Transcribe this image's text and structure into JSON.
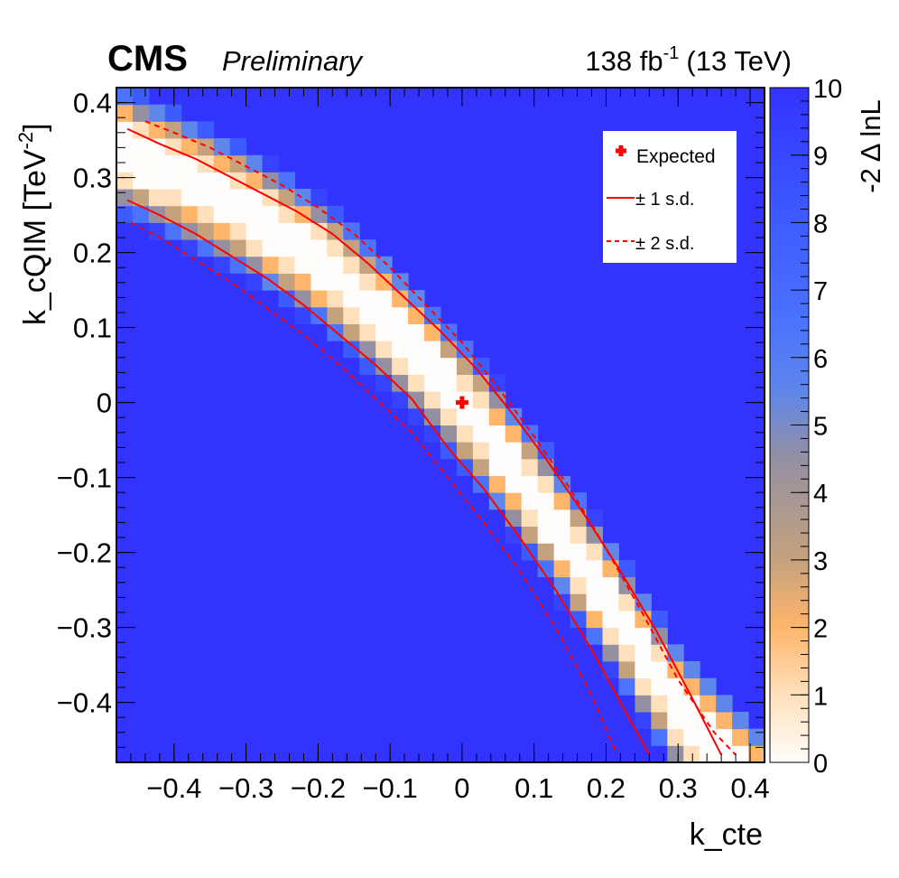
{
  "header": {
    "experiment": "CMS",
    "status": "Preliminary",
    "lumi_value": "138 fb",
    "lumi_exponent": "-1",
    "energy": "(13 TeV)"
  },
  "chart_data": {
    "type": "heatmap",
    "xlabel": "k_cte",
    "ylabel_main": "k_cQIM [TeV",
    "ylabel_exp": "-2",
    "ylabel_close": "]",
    "zlabel": "-2 Δ lnL",
    "xlim": [
      -0.48,
      0.42
    ],
    "ylim": [
      -0.48,
      0.42
    ],
    "zlim": [
      0,
      10
    ],
    "x_ticks": [
      {
        "v": -0.4,
        "t": "−0.4"
      },
      {
        "v": -0.3,
        "t": "−0.3"
      },
      {
        "v": -0.2,
        "t": "−0.2"
      },
      {
        "v": -0.1,
        "t": "−0.1"
      },
      {
        "v": 0,
        "t": "0"
      },
      {
        "v": 0.1,
        "t": "0.1"
      },
      {
        "v": 0.2,
        "t": "0.2"
      },
      {
        "v": 0.3,
        "t": "0.3"
      },
      {
        "v": 0.4,
        "t": "0.4"
      }
    ],
    "y_ticks": [
      {
        "v": -0.4,
        "t": "−0.4"
      },
      {
        "v": -0.3,
        "t": "−0.3"
      },
      {
        "v": -0.2,
        "t": "−0.2"
      },
      {
        "v": -0.1,
        "t": "−0.1"
      },
      {
        "v": 0,
        "t": "0"
      },
      {
        "v": 0.1,
        "t": "0.1"
      },
      {
        "v": 0.2,
        "t": "0.2"
      },
      {
        "v": 0.3,
        "t": "0.3"
      },
      {
        "v": 0.4,
        "t": "0.4"
      }
    ],
    "z_ticks": [
      "0",
      "1",
      "2",
      "3",
      "4",
      "5",
      "6",
      "7",
      "8",
      "9",
      "10"
    ],
    "grid": false,
    "bins": {
      "nx": 40,
      "ny": 40
    },
    "valley_curve": {
      "x": [
        -0.48,
        -0.4,
        -0.3,
        -0.2,
        -0.1,
        0,
        0.1,
        0.2,
        0.3,
        0.37
      ],
      "y": [
        0.34,
        0.305,
        0.255,
        0.19,
        0.105,
        0.0,
        -0.125,
        -0.26,
        -0.41,
        -0.48
      ]
    },
    "valley_halfwidth_1sd": 0.045,
    "valley_halfwidth_2sd": 0.065,
    "contour_1sd": {
      "upper": {
        "x": [
          -0.465,
          -0.42,
          -0.37,
          -0.33,
          -0.28,
          -0.23,
          -0.18,
          -0.13,
          -0.08,
          -0.03,
          0.02,
          0.07,
          0.12,
          0.17,
          0.22,
          0.27,
          0.32,
          0.36
        ],
        "y": [
          0.365,
          0.345,
          0.325,
          0.305,
          0.28,
          0.255,
          0.225,
          0.185,
          0.14,
          0.095,
          0.045,
          -0.015,
          -0.08,
          -0.15,
          -0.225,
          -0.305,
          -0.395,
          -0.47
        ]
      },
      "lower": {
        "x": [
          -0.465,
          -0.42,
          -0.37,
          -0.32,
          -0.27,
          -0.22,
          -0.17,
          -0.12,
          -0.07,
          -0.02,
          0.03,
          0.08,
          0.13,
          0.18,
          0.22,
          0.26
        ],
        "y": [
          0.27,
          0.25,
          0.225,
          0.195,
          0.165,
          0.13,
          0.09,
          0.05,
          0.005,
          -0.06,
          -0.115,
          -0.18,
          -0.25,
          -0.33,
          -0.4,
          -0.47
        ]
      }
    },
    "contour_2sd": {
      "upper": {
        "x": [
          -0.44,
          -0.4,
          -0.35,
          -0.3,
          -0.25,
          -0.2,
          -0.15,
          -0.1,
          -0.05,
          0.0,
          0.05,
          0.1,
          0.15,
          0.2,
          0.25,
          0.3,
          0.35,
          0.38
        ],
        "y": [
          0.375,
          0.36,
          0.34,
          0.315,
          0.29,
          0.26,
          0.225,
          0.18,
          0.13,
          0.08,
          0.02,
          -0.045,
          -0.115,
          -0.195,
          -0.28,
          -0.37,
          -0.44,
          -0.47
        ]
      },
      "lower": {
        "x": [
          -0.46,
          -0.42,
          -0.37,
          -0.32,
          -0.27,
          -0.22,
          -0.17,
          -0.12,
          -0.07,
          -0.02,
          0.03,
          0.08,
          0.13,
          0.18,
          0.215
        ],
        "y": [
          0.24,
          0.22,
          0.19,
          0.16,
          0.125,
          0.09,
          0.05,
          0.005,
          -0.04,
          -0.1,
          -0.16,
          -0.225,
          -0.3,
          -0.39,
          -0.47
        ]
      }
    },
    "expected_point": {
      "x": 0.0,
      "y": 0.0
    },
    "legend": {
      "position": "top-right",
      "entries": [
        {
          "label": "Expected",
          "style": "marker"
        },
        {
          "label": "± 1 s.d.",
          "style": "solid"
        },
        {
          "label": "± 2 s.d.",
          "style": "dashed"
        }
      ]
    },
    "colors": {
      "contour": "#ff0000",
      "marker": "#ff0000",
      "background_high": "#3333ff",
      "palette": [
        "#fffdfb",
        "#ffe0bc",
        "#ffb56a",
        "#c5a27e",
        "#9490a2",
        "#5f86ea",
        "#4b73fd",
        "#3d5cff",
        "#3644ff",
        "#3333ff"
      ]
    }
  }
}
